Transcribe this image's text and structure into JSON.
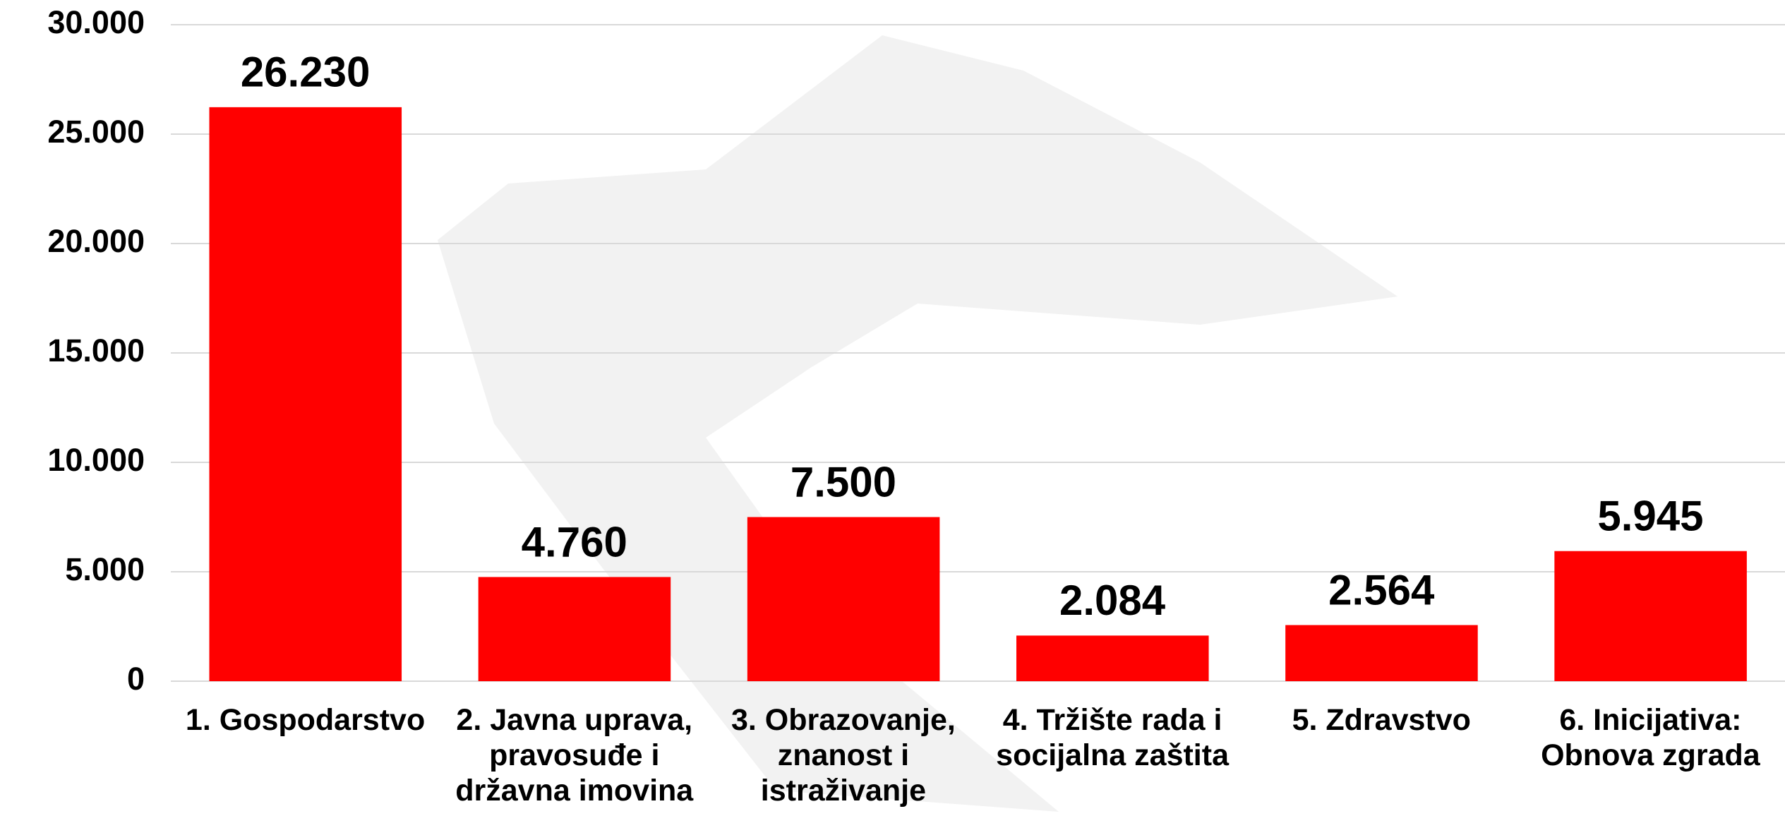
{
  "chart_data": {
    "type": "bar",
    "categories": [
      "1. Gospodarstvo",
      "2. Javna uprava, pravosuđe i državna imovina",
      "3. Obrazovanje, znanost i istraživanje",
      "4. Tržište rada i socijalna zaštita",
      "5. Zdravstvo",
      "6. Inicijativa: Obnova zgrada"
    ],
    "values": [
      26230,
      4760,
      7500,
      2084,
      2564,
      5945
    ],
    "value_labels": [
      "26.230",
      "4.760",
      "7.500",
      "2.084",
      "2.564",
      "5.945"
    ],
    "color": "#ff0000",
    "ylim": [
      0,
      30000
    ],
    "yticks": [
      0,
      {
        "value": 5000,
        "label": "5.000"
      },
      {
        "value": 10000,
        "label": "10.000"
      },
      {
        "value": 15000,
        "label": "15.000"
      },
      {
        "value": 20000,
        "label": "20.000"
      },
      {
        "value": 25000,
        "label": "25.000"
      },
      {
        "value": 30000,
        "label": "30.000"
      }
    ],
    "grid": true
  }
}
